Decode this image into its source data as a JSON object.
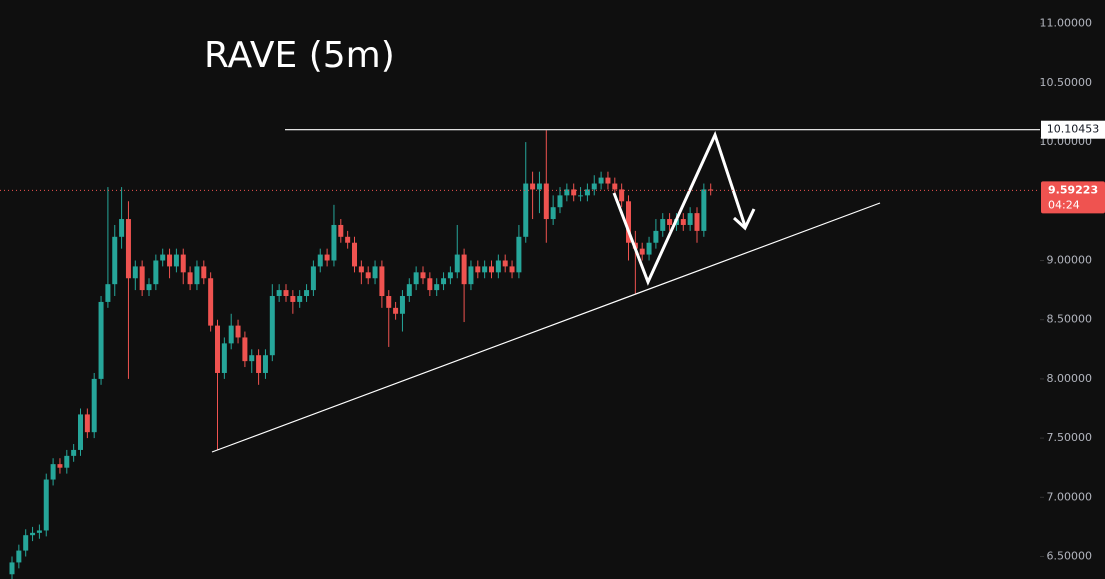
{
  "chart_data": {
    "type": "candlestick",
    "title": "RAVE (5m)",
    "open": [
      6.35,
      6.45,
      6.55,
      6.68,
      6.7,
      6.72,
      7.15,
      7.28,
      7.25,
      7.35,
      7.4,
      7.7,
      7.55,
      8.0,
      8.65,
      8.8,
      9.2,
      9.35,
      8.85,
      8.95,
      8.75,
      8.8,
      9.0,
      9.05,
      8.95,
      9.05,
      8.9,
      8.8,
      8.95,
      8.85,
      8.45,
      8.05,
      8.3,
      8.45,
      8.35,
      8.15,
      8.2,
      8.05,
      8.2,
      8.7,
      8.75,
      8.7,
      8.65,
      8.7,
      8.75,
      8.95,
      9.05,
      9.0,
      9.3,
      9.2,
      9.15,
      8.95,
      8.9,
      8.85,
      8.95,
      8.7,
      8.6,
      8.55,
      8.7,
      8.8,
      8.9,
      8.85,
      8.75,
      8.8,
      8.85,
      8.9,
      9.05,
      8.8,
      8.95,
      8.9,
      8.95,
      8.9,
      9.0,
      8.95,
      8.9,
      9.2,
      9.65,
      9.6,
      9.65,
      9.35,
      9.45,
      9.55,
      9.6,
      9.55,
      9.55,
      9.6,
      9.65,
      9.7,
      9.65,
      9.6,
      9.5,
      9.15,
      9.1,
      9.05,
      9.15,
      9.25,
      9.35,
      9.3,
      9.35,
      9.3,
      9.4,
      9.25,
      9.6
    ],
    "high": [
      6.5,
      6.6,
      6.73,
      6.75,
      6.77,
      7.2,
      7.33,
      7.33,
      7.4,
      7.45,
      7.75,
      7.75,
      8.05,
      8.7,
      9.62,
      9.3,
      9.62,
      9.5,
      9.0,
      9.0,
      8.85,
      9.05,
      9.1,
      9.1,
      9.1,
      9.1,
      8.95,
      9.0,
      9.0,
      8.9,
      8.5,
      8.35,
      8.55,
      8.5,
      8.4,
      8.25,
      8.25,
      8.25,
      8.8,
      8.8,
      8.8,
      8.75,
      8.75,
      8.8,
      9.0,
      9.1,
      9.1,
      9.47,
      9.35,
      9.25,
      9.2,
      9.0,
      8.95,
      9.0,
      9.0,
      8.75,
      8.65,
      8.75,
      8.85,
      8.95,
      8.95,
      8.9,
      8.85,
      8.9,
      8.95,
      9.3,
      9.1,
      9.0,
      9.0,
      9.0,
      9.0,
      9.05,
      9.05,
      9.0,
      9.3,
      10.0,
      9.75,
      9.75,
      10.1,
      9.55,
      9.62,
      9.65,
      9.65,
      9.62,
      9.65,
      9.72,
      9.75,
      9.75,
      9.7,
      9.65,
      9.55,
      9.25,
      9.15,
      9.2,
      9.35,
      9.4,
      9.4,
      9.4,
      9.4,
      9.45,
      9.45,
      9.65,
      9.65
    ],
    "low": [
      6.31,
      6.4,
      6.5,
      6.63,
      6.65,
      6.67,
      7.1,
      7.2,
      7.2,
      7.3,
      7.35,
      7.5,
      7.5,
      7.95,
      8.6,
      8.7,
      9.1,
      8.0,
      8.75,
      8.7,
      8.7,
      8.75,
      8.95,
      8.85,
      8.9,
      8.8,
      8.75,
      8.75,
      8.8,
      8.4,
      7.4,
      8.0,
      8.25,
      8.3,
      8.1,
      8.05,
      7.95,
      8.0,
      8.15,
      8.65,
      8.65,
      8.55,
      8.6,
      8.65,
      8.7,
      8.9,
      8.95,
      8.95,
      9.15,
      9.1,
      8.9,
      8.8,
      8.8,
      8.8,
      8.6,
      8.27,
      8.5,
      8.4,
      8.65,
      8.75,
      8.8,
      8.7,
      8.7,
      8.75,
      8.8,
      8.85,
      8.48,
      8.75,
      8.85,
      8.85,
      8.85,
      8.85,
      8.9,
      8.85,
      8.85,
      9.15,
      9.35,
      9.4,
      9.15,
      9.3,
      9.4,
      9.5,
      9.5,
      9.5,
      9.5,
      9.55,
      9.6,
      9.6,
      9.55,
      9.45,
      9.0,
      8.72,
      9.0,
      9.0,
      9.1,
      9.2,
      9.25,
      9.25,
      9.25,
      9.25,
      9.15,
      9.2,
      9.55
    ],
    "close": [
      6.45,
      6.55,
      6.68,
      6.7,
      6.72,
      7.15,
      7.28,
      7.25,
      7.35,
      7.4,
      7.7,
      7.55,
      8.0,
      8.65,
      8.8,
      9.2,
      9.35,
      8.85,
      8.95,
      8.75,
      8.8,
      9.0,
      9.05,
      8.95,
      9.05,
      8.9,
      8.8,
      8.95,
      8.85,
      8.45,
      8.05,
      8.3,
      8.45,
      8.35,
      8.15,
      8.2,
      8.05,
      8.2,
      8.7,
      8.75,
      8.7,
      8.65,
      8.7,
      8.75,
      8.95,
      9.05,
      9.0,
      9.3,
      9.2,
      9.15,
      8.95,
      8.9,
      8.85,
      8.95,
      8.7,
      8.6,
      8.55,
      8.7,
      8.8,
      8.9,
      8.85,
      8.75,
      8.8,
      8.85,
      8.9,
      9.05,
      8.8,
      8.95,
      8.9,
      8.95,
      8.9,
      9.0,
      8.95,
      8.9,
      9.2,
      9.65,
      9.6,
      9.65,
      9.35,
      9.45,
      9.55,
      9.6,
      9.55,
      9.55,
      9.6,
      9.65,
      9.7,
      9.65,
      9.6,
      9.5,
      9.15,
      9.1,
      9.05,
      9.15,
      9.25,
      9.35,
      9.3,
      9.35,
      9.3,
      9.4,
      9.25,
      9.6,
      9.59223
    ],
    "up_color": "#26a69a",
    "down_color": "#ef5350",
    "ylim": [
      6.31,
      11.2
    ],
    "yticks": [
      {
        "value": 6.5,
        "label": "6.50000"
      },
      {
        "value": 7,
        "label": "7.00000"
      },
      {
        "value": 7.5,
        "label": "7.50000"
      },
      {
        "value": 8,
        "label": "8.00000"
      },
      {
        "value": 8.5,
        "label": "8.50000"
      },
      {
        "value": 9,
        "label": "9.00000"
      },
      {
        "value": 10,
        "label": "10.00000"
      },
      {
        "value": 10.5,
        "label": "10.50000"
      },
      {
        "value": 11,
        "label": "11.00000"
      }
    ],
    "level": 10.10453,
    "last_price": 9.59223,
    "countdown": "04:24"
  }
}
